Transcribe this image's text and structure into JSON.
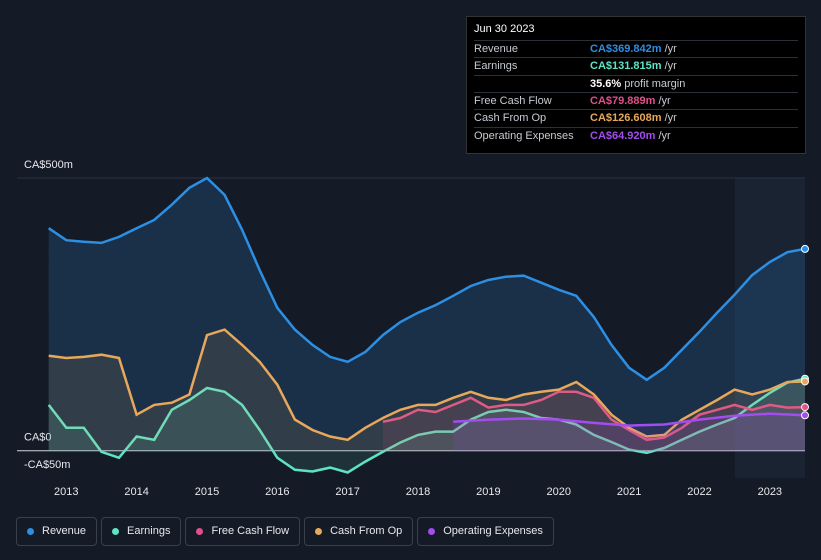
{
  "chart_data": {
    "type": "line",
    "xlim": [
      2012.3,
      2023.5
    ],
    "xticks": [
      2013,
      2014,
      2015,
      2016,
      2017,
      2018,
      2019,
      2020,
      2021,
      2022,
      2023
    ],
    "ylim": [
      -50,
      500
    ],
    "yticks": [
      {
        "value": -50,
        "label": "-CA$50m"
      },
      {
        "value": 0,
        "label": "CA$0"
      },
      {
        "value": 500,
        "label": "CA$500m"
      }
    ],
    "series": [
      {
        "name": "Revenue",
        "color": "#2d8fe3",
        "x": [
          2012.75,
          2013,
          2013.25,
          2013.5,
          2013.75,
          2014,
          2014.25,
          2014.5,
          2014.75,
          2015,
          2015.25,
          2015.5,
          2015.75,
          2016,
          2016.25,
          2016.5,
          2016.75,
          2017,
          2017.25,
          2017.5,
          2017.75,
          2018,
          2018.25,
          2018.5,
          2018.75,
          2019,
          2019.25,
          2019.5,
          2019.75,
          2020,
          2020.25,
          2020.5,
          2020.75,
          2021,
          2021.25,
          2021.5,
          2021.75,
          2022,
          2022.25,
          2022.5,
          2022.75,
          2023,
          2023.25,
          2023.5
        ],
        "values": [
          408,
          386,
          383,
          381,
          392,
          408,
          423,
          451,
          482,
          500,
          469,
          405,
          331,
          262,
          222,
          194,
          172,
          163,
          181,
          212,
          236,
          253,
          267,
          284,
          302,
          313,
          319,
          321,
          308,
          295,
          284,
          245,
          194,
          152,
          130,
          152,
          185,
          218,
          253,
          286,
          322,
          346,
          364,
          370
        ]
      },
      {
        "name": "Earnings",
        "color": "#5fe3c5",
        "x": [
          2012.75,
          2013,
          2013.25,
          2013.5,
          2013.75,
          2014,
          2014.25,
          2014.5,
          2014.75,
          2015,
          2015.25,
          2015.5,
          2015.75,
          2016,
          2016.25,
          2016.5,
          2016.75,
          2017,
          2017.25,
          2017.5,
          2017.75,
          2018,
          2018.25,
          2018.5,
          2018.75,
          2019,
          2019.25,
          2019.5,
          2019.75,
          2020,
          2020.25,
          2020.5,
          2020.75,
          2021,
          2021.25,
          2021.5,
          2021.75,
          2022,
          2022.25,
          2022.5,
          2022.75,
          2023,
          2023.25,
          2023.5
        ],
        "values": [
          84,
          42,
          42,
          -2,
          -13,
          26,
          20,
          75,
          93,
          115,
          108,
          84,
          38,
          -13,
          -35,
          -38,
          -31,
          -40,
          -20,
          -2,
          15,
          29,
          35,
          35,
          57,
          71,
          75,
          71,
          60,
          57,
          48,
          29,
          16,
          2,
          -4,
          5,
          20,
          35,
          48,
          60,
          84,
          106,
          125,
          132
        ]
      },
      {
        "name": "Free Cash Flow",
        "color": "#e0508c",
        "x": [
          2017.5,
          2017.75,
          2018,
          2018.25,
          2018.5,
          2018.75,
          2019,
          2019.25,
          2019.5,
          2019.75,
          2020,
          2020.25,
          2020.5,
          2020.75,
          2021,
          2021.25,
          2021.5,
          2021.75,
          2022,
          2022.25,
          2022.5,
          2022.75,
          2023,
          2023.25,
          2023.5
        ],
        "values": [
          53,
          60,
          75,
          71,
          84,
          97,
          79,
          84,
          84,
          93,
          108,
          108,
          97,
          57,
          38,
          20,
          24,
          42,
          66,
          75,
          84,
          75,
          84,
          79,
          80
        ]
      },
      {
        "name": "Cash From Op",
        "color": "#e8a85c",
        "x": [
          2012.75,
          2013,
          2013.25,
          2013.5,
          2013.75,
          2014,
          2014.25,
          2014.5,
          2014.75,
          2015,
          2015.25,
          2015.5,
          2015.75,
          2016,
          2016.25,
          2016.5,
          2016.75,
          2017,
          2017.25,
          2017.5,
          2017.75,
          2018,
          2018.25,
          2018.5,
          2018.75,
          2019,
          2019.25,
          2019.5,
          2019.75,
          2020,
          2020.25,
          2020.5,
          2020.75,
          2021,
          2021.25,
          2021.5,
          2021.75,
          2022,
          2022.25,
          2022.5,
          2022.75,
          2023,
          2023.25,
          2023.5
        ],
        "values": [
          174,
          170,
          172,
          176,
          170,
          66,
          84,
          88,
          103,
          212,
          222,
          194,
          163,
          121,
          57,
          38,
          26,
          20,
          42,
          60,
          75,
          84,
          84,
          97,
          108,
          97,
          93,
          103,
          108,
          112,
          126,
          103,
          66,
          42,
          26,
          29,
          57,
          75,
          93,
          112,
          103,
          112,
          126,
          127
        ]
      },
      {
        "name": "Operating Expenses",
        "color": "#a34cf0",
        "x": [
          2018.5,
          2019,
          2019.5,
          2020,
          2020.5,
          2021,
          2021.5,
          2022,
          2022.5,
          2023,
          2023.5
        ],
        "values": [
          53,
          57,
          59,
          57,
          51,
          46,
          48,
          57,
          64,
          68,
          65
        ]
      }
    ]
  },
  "tooltip": {
    "date": "Jun 30 2023",
    "rows": [
      {
        "label": "Revenue",
        "value": "CA$369.842m",
        "suffix": "/yr"
      },
      {
        "label": "Earnings",
        "value": "CA$131.815m",
        "suffix": "/yr"
      },
      {
        "label": null,
        "value": "35.6%",
        "suffix": "profit margin"
      },
      {
        "label": "Free Cash Flow",
        "value": "CA$79.889m",
        "suffix": "/yr"
      },
      {
        "label": "Cash From Op",
        "value": "CA$126.608m",
        "suffix": "/yr"
      },
      {
        "label": "Operating Expenses",
        "value": "CA$64.920m",
        "suffix": "/yr"
      }
    ]
  }
}
